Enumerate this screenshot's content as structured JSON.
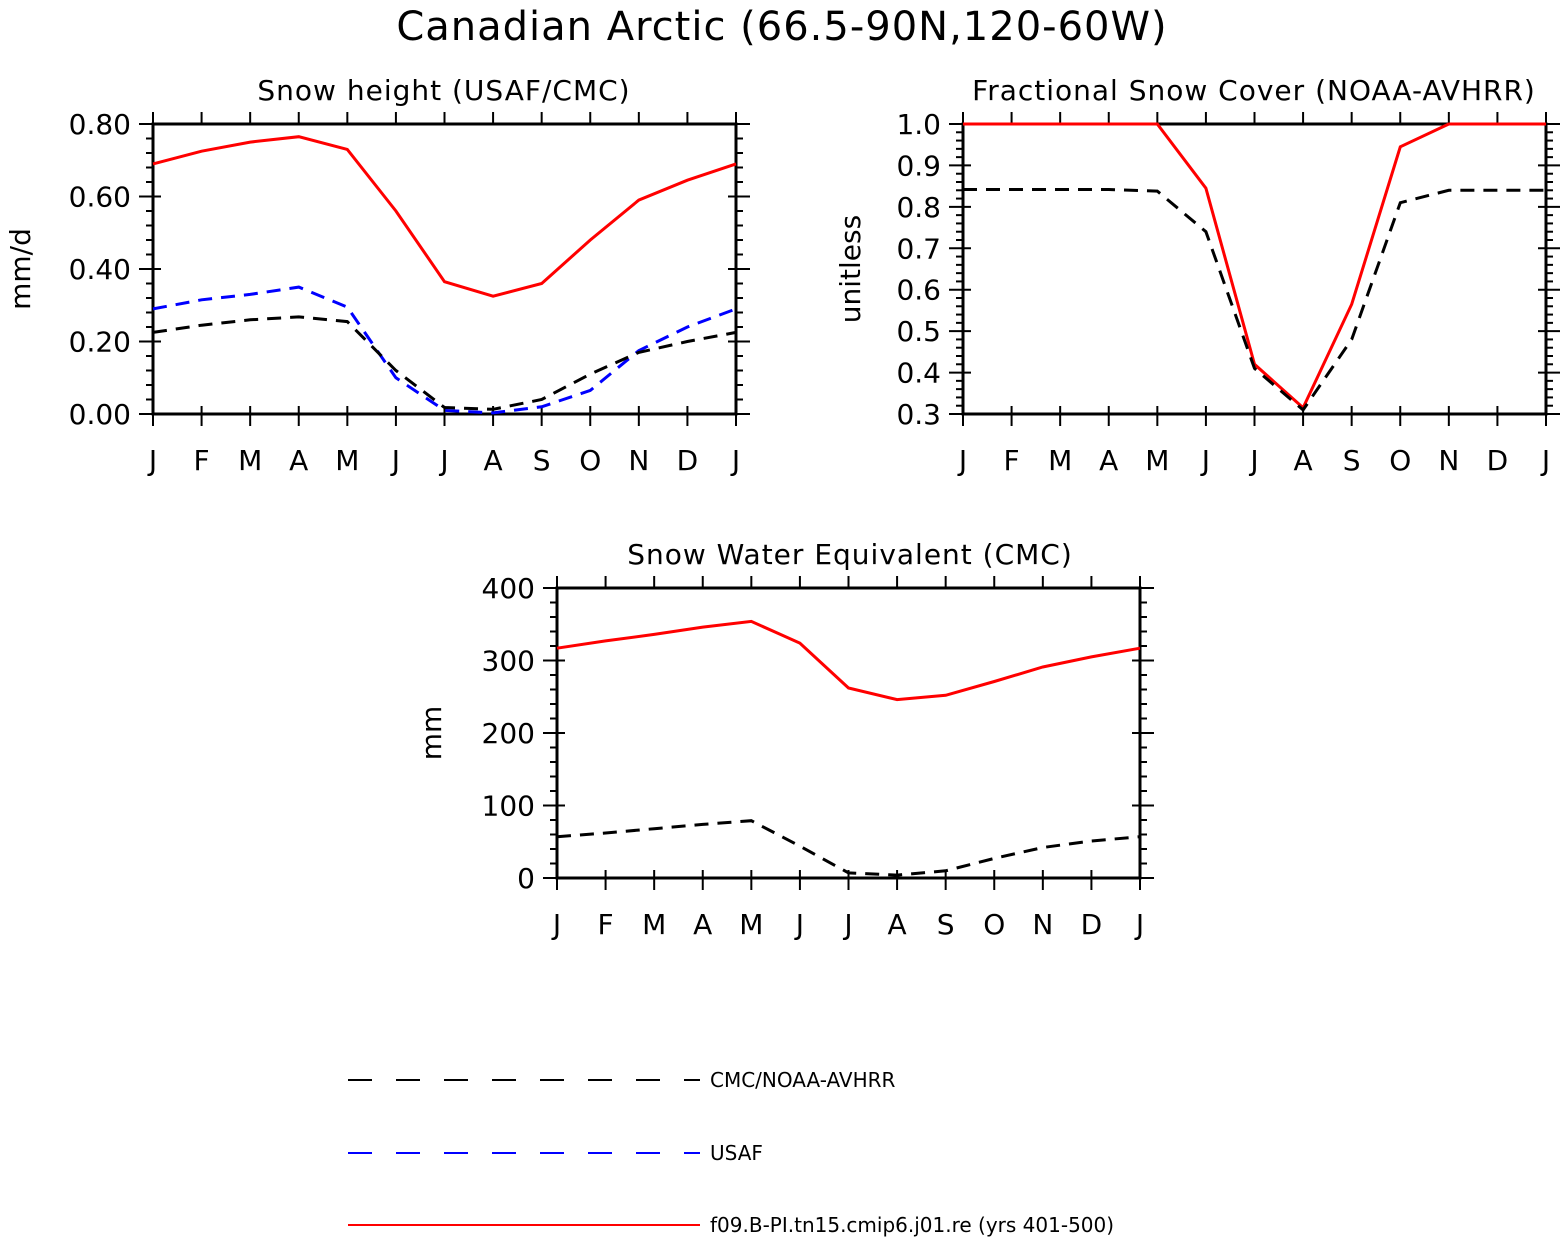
{
  "title": "Canadian Arctic (66.5-90N,120-60W)",
  "colors": {
    "model": "#ff0000",
    "usaf": "#0000ff",
    "obs": "#000000"
  },
  "legend": [
    {
      "series": "obs",
      "label": "CMC/NOAA-AVHRR",
      "color": "#000000",
      "dash": "dashed"
    },
    {
      "series": "usaf",
      "label": "USAF",
      "color": "#0000ff",
      "dash": "dashed"
    },
    {
      "series": "model",
      "label": "f09.B-PI.tn15.cmip6.j01.re (yrs 401-500)",
      "color": "#ff0000",
      "dash": "solid"
    }
  ],
  "chart_data": [
    {
      "type": "line",
      "title": "Snow height (USAF/CMC)",
      "xlabel": "",
      "ylabel": "mm/d",
      "categories": [
        "J",
        "F",
        "M",
        "A",
        "M",
        "J",
        "J",
        "A",
        "S",
        "O",
        "N",
        "D",
        "J"
      ],
      "ylim": [
        0,
        0.8
      ],
      "yticks": [
        "0.00",
        "0.20",
        "0.40",
        "0.60",
        "0.80"
      ],
      "series": [
        {
          "key": "model",
          "color": "#ff0000",
          "dash": "solid",
          "values": [
            0.69,
            0.725,
            0.75,
            0.765,
            0.73,
            0.56,
            0.365,
            0.325,
            0.36,
            0.48,
            0.59,
            0.645,
            0.69
          ]
        },
        {
          "key": "usaf",
          "color": "#0000ff",
          "dash": "dashed",
          "values": [
            0.29,
            0.315,
            0.33,
            0.35,
            0.295,
            0.1,
            0.01,
            0.003,
            0.02,
            0.065,
            0.175,
            0.24,
            0.29
          ]
        },
        {
          "key": "obs",
          "color": "#000000",
          "dash": "dashed",
          "values": [
            0.225,
            0.245,
            0.26,
            0.268,
            0.255,
            0.12,
            0.018,
            0.013,
            0.04,
            0.11,
            0.17,
            0.2,
            0.225
          ]
        }
      ]
    },
    {
      "type": "line",
      "title": "Fractional Snow Cover (NOAA-AVHRR)",
      "xlabel": "",
      "ylabel": "unitless",
      "categories": [
        "J",
        "F",
        "M",
        "A",
        "M",
        "J",
        "J",
        "A",
        "S",
        "O",
        "N",
        "D",
        "J"
      ],
      "ylim": [
        0.3,
        1.0
      ],
      "yticks": [
        "0.3",
        "0.4",
        "0.5",
        "0.6",
        "0.7",
        "0.8",
        "0.9",
        "1.0"
      ],
      "series": [
        {
          "key": "model",
          "color": "#ff0000",
          "dash": "solid",
          "values": [
            1.0,
            1.0,
            1.0,
            1.0,
            1.0,
            0.845,
            0.42,
            0.315,
            0.565,
            0.945,
            1.0,
            1.0,
            1.0
          ]
        },
        {
          "key": "obs",
          "color": "#000000",
          "dash": "dashed",
          "values": [
            0.842,
            0.842,
            0.842,
            0.842,
            0.838,
            0.74,
            0.41,
            0.31,
            0.48,
            0.81,
            0.84,
            0.84,
            0.84
          ]
        }
      ]
    },
    {
      "type": "line",
      "title": "Snow Water Equivalent (CMC)",
      "xlabel": "",
      "ylabel": "mm",
      "categories": [
        "J",
        "F",
        "M",
        "A",
        "M",
        "J",
        "J",
        "A",
        "S",
        "O",
        "N",
        "D",
        "J"
      ],
      "ylim": [
        0,
        400
      ],
      "yticks": [
        "0",
        "100",
        "200",
        "300",
        "400"
      ],
      "series": [
        {
          "key": "model",
          "color": "#ff0000",
          "dash": "solid",
          "values": [
            317,
            327,
            336,
            346,
            354,
            324,
            262,
            246,
            252,
            271,
            291,
            305,
            317
          ]
        },
        {
          "key": "obs",
          "color": "#000000",
          "dash": "dashed",
          "values": [
            57,
            62,
            68,
            74,
            79,
            44,
            7,
            4,
            10,
            27,
            42,
            51,
            57
          ]
        }
      ]
    }
  ]
}
